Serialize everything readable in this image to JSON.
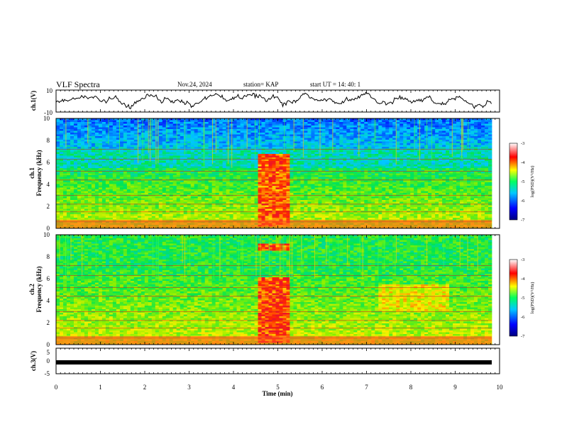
{
  "header": {
    "title": "VLF Spectra",
    "date": "Nov.24, 2024",
    "station": "station= KAP",
    "start": "start  UT  =   14: 40: 1"
  },
  "chart_data": [
    {
      "type": "line",
      "ylabel": "ch.1(V)",
      "ylim": [
        -10,
        10
      ],
      "yticks": [
        "10",
        "-10"
      ],
      "xlim": [
        0,
        10
      ],
      "note": "waveform trace oscillating roughly between -8 and 9 V"
    },
    {
      "type": "heatmap",
      "ylabel_top": "ch.1",
      "ylabel": "Frequency (kHz)",
      "ylim": [
        0,
        10
      ],
      "yticks": [
        "0",
        "2",
        "4",
        "6",
        "8",
        "10"
      ],
      "xlim": [
        0,
        10
      ],
      "colorbar": {
        "label": "log(PSD)(V²/Hz)",
        "range": [
          -7,
          -3
        ],
        "ticks": [
          "-3",
          "-4",
          "-5",
          "-6",
          "-7"
        ]
      }
    },
    {
      "type": "heatmap",
      "ylabel_top": "ch.2",
      "ylabel": "Frequency (kHz)",
      "ylim": [
        0,
        10
      ],
      "yticks": [
        "0",
        "2",
        "4",
        "6",
        "8",
        "10"
      ],
      "xlim": [
        0,
        10
      ],
      "colorbar": {
        "label": "log(PSD)(V²/Hz)",
        "range": [
          -7,
          -3
        ],
        "ticks": [
          "-3",
          "-4",
          "-5",
          "-6",
          "-7"
        ]
      }
    },
    {
      "type": "line",
      "ylabel": "ch.3(V)",
      "ylim": [
        -5,
        5
      ],
      "yticks": [
        "5",
        "0",
        "-5"
      ],
      "xlim": [
        0,
        10
      ],
      "note": "flat thick trace near -1 V"
    }
  ],
  "xaxis": {
    "label": "Time  (min)",
    "ticks": [
      "0",
      "1",
      "2",
      "3",
      "4",
      "5",
      "6",
      "7",
      "8",
      "9",
      "10"
    ]
  },
  "colors": {
    "spectrum_low": "#0000c8",
    "spectrum_mid": "#00e040",
    "spectrum_high": "#ff0000"
  }
}
